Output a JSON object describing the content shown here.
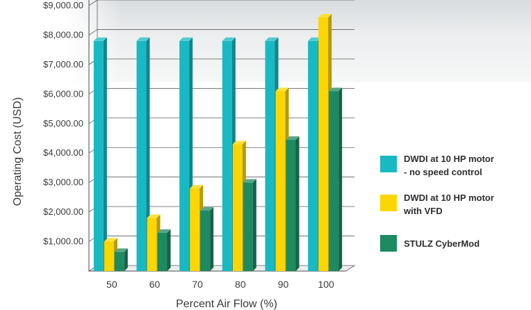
{
  "chart_data": {
    "type": "bar",
    "ylabel": "Operating Cost (USD)",
    "xlabel": "Percent Air Flow (%)",
    "categories": [
      "50",
      "60",
      "70",
      "80",
      "90",
      "100"
    ],
    "ylim": [
      0,
      9000
    ],
    "yticks": [
      1000,
      2000,
      3000,
      4000,
      5000,
      6000,
      7000,
      8000,
      9000
    ],
    "ytick_labels": [
      "$1,000.00",
      "$2,000.00",
      "$3,000.00",
      "$4,000.00",
      "$5,000.00",
      "$6,000.00",
      "$7,000.00",
      "$8,000.00",
      "$9,000.00"
    ],
    "grid": true,
    "legend_position": "right",
    "series": [
      {
        "name": "DWDI at 10 HP motor - no speed control",
        "legend_lines": [
          "DWDI at 10 HP motor",
          "- no speed control"
        ],
        "color": "#19b9c3",
        "values": [
          7800,
          7800,
          7800,
          7800,
          7800,
          7800
        ]
      },
      {
        "name": "DWDI at 10 HP motor with VFD",
        "legend_lines": [
          "DWDI at 10 HP motor",
          "with VFD"
        ],
        "color": "#fcd600",
        "values": [
          1000,
          1800,
          2800,
          4300,
          6100,
          8600
        ]
      },
      {
        "name": "STULZ CyberMod",
        "legend_lines": [
          "STULZ CyberMod"
        ],
        "color": "#1d8a62",
        "values": [
          650,
          1300,
          2050,
          3000,
          4450,
          6100
        ]
      }
    ]
  }
}
